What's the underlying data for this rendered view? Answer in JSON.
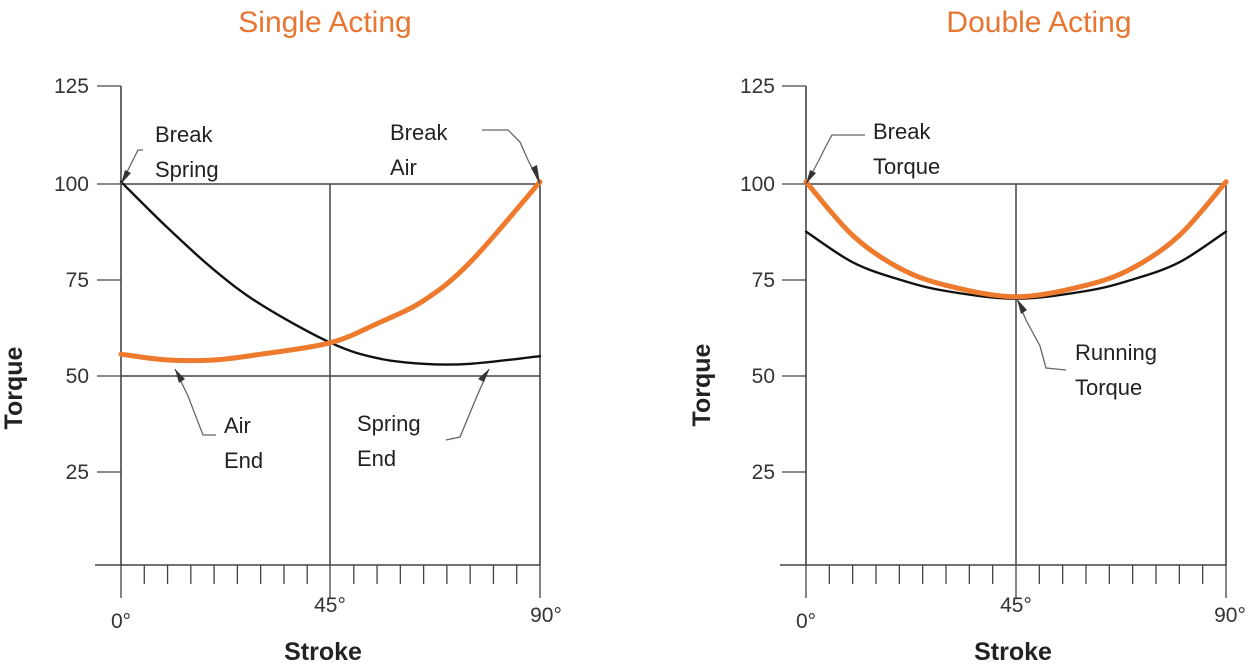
{
  "chart_data": [
    {
      "type": "line",
      "title": "Single Acting",
      "xlabel": "Stroke",
      "ylabel": "Torque",
      "x_ticks": [
        "0°",
        "45°",
        "90°"
      ],
      "y_ticks": [
        "125",
        "100",
        "75",
        "50",
        "25"
      ],
      "xlim": [
        0,
        90
      ],
      "ylim": [
        0,
        125
      ],
      "grid": true,
      "series": [
        {
          "color": "#111111",
          "x": [
            0,
            10,
            20,
            30,
            45,
            55,
            65,
            75,
            90
          ],
          "values": [
            100,
            88,
            77,
            68,
            58,
            54,
            52.5,
            52.5,
            54.5
          ]
        },
        {
          "color": "#ee7a2e",
          "x": [
            0,
            10,
            20,
            30,
            45,
            55,
            65,
            75,
            90
          ],
          "values": [
            55,
            53.5,
            53.5,
            55,
            58,
            63,
            69,
            79,
            100
          ]
        }
      ],
      "annotations": [
        {
          "lines": [
            "Break",
            "Spring"
          ],
          "x": 0,
          "y": 100
        },
        {
          "lines": [
            "Break",
            "Air"
          ],
          "x": 90,
          "y": 100
        },
        {
          "lines": [
            "Air",
            "End"
          ],
          "x": 12,
          "y": 53.5
        },
        {
          "lines": [
            "Spring",
            "End"
          ],
          "x": 76,
          "y": 52.5
        }
      ]
    },
    {
      "type": "line",
      "title": "Double Acting",
      "xlabel": "Stroke",
      "ylabel": "Torque",
      "x_ticks": [
        "0°",
        "45°",
        "90°"
      ],
      "y_ticks": [
        "125",
        "100",
        "75",
        "50",
        "25"
      ],
      "xlim": [
        0,
        90
      ],
      "ylim": [
        0,
        125
      ],
      "grid": true,
      "series": [
        {
          "color": "#111111",
          "x": [
            0,
            10,
            20,
            30,
            45,
            60,
            70,
            80,
            90
          ],
          "values": [
            87,
            79,
            74.5,
            71.5,
            69.5,
            71.5,
            74.5,
            79,
            87
          ]
        },
        {
          "color": "#ee7a2e",
          "x": [
            0,
            10,
            20,
            30,
            45,
            60,
            70,
            80,
            90
          ],
          "values": [
            100,
            86,
            77.5,
            73,
            70,
            73,
            77.5,
            86,
            100
          ]
        }
      ],
      "annotations": [
        {
          "lines": [
            "Break",
            "Torque"
          ],
          "x": 0,
          "y": 100
        },
        {
          "lines": [
            "Running",
            "Torque"
          ],
          "x": 45,
          "y": 70
        }
      ]
    }
  ]
}
